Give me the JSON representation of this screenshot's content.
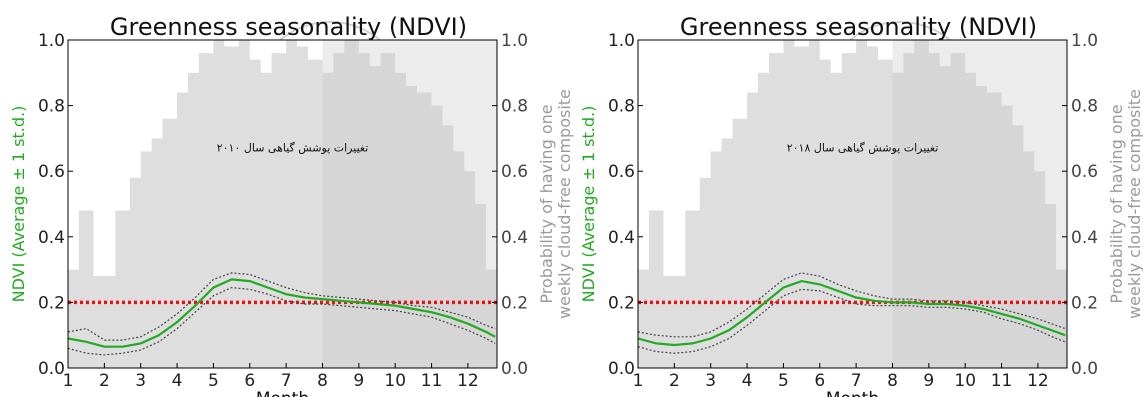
{
  "chart_data": [
    {
      "type": "line",
      "title": "Greenness seasonality (NDVI)",
      "xlabel": "Month",
      "ylabel": "NDVI (Average ± 1 st.d.)",
      "y2label": [
        "Probability of having one",
        "weekly cloud-free composite"
      ],
      "annotation": "تغییرات پوشش گیاهی سال ۲۰۱۰",
      "xlim": [
        1,
        12.8
      ],
      "ylim": [
        0,
        1.0
      ],
      "y2lim": [
        0,
        1.0
      ],
      "x_ticks": [
        "1",
        "2",
        "3",
        "4",
        "5",
        "6",
        "7",
        "8",
        "9",
        "10",
        "11",
        "12"
      ],
      "y_ticks": [
        "0.0",
        "0.2",
        "0.4",
        "0.6",
        "0.8",
        "1.0"
      ],
      "y2_ticks": [
        "0.0",
        "0.2",
        "0.4",
        "0.6",
        "0.8",
        "1.0"
      ],
      "threshold": 0.2,
      "colors": {
        "mean": "#22aa22",
        "band": "#444444",
        "threshold": "#ee1111",
        "bars": "#dcdcdc",
        "shade": "#c9c9c9"
      },
      "x": [
        1,
        1.5,
        2,
        2.5,
        3,
        3.5,
        4,
        4.5,
        5,
        5.5,
        6,
        6.5,
        7,
        7.5,
        8,
        8.5,
        9,
        9.5,
        10,
        10.5,
        11,
        11.5,
        12,
        12.5,
        12.75
      ],
      "series": [
        {
          "name": "",
          "role": "mean",
          "values": [
            0.09,
            0.08,
            0.065,
            0.065,
            0.075,
            0.1,
            0.14,
            0.19,
            0.245,
            0.27,
            0.265,
            0.245,
            0.225,
            0.215,
            0.21,
            0.205,
            0.2,
            0.195,
            0.19,
            0.18,
            0.17,
            0.155,
            0.135,
            0.11,
            0.095
          ]
        },
        {
          "name": "",
          "role": "upper",
          "values": [
            0.11,
            0.12,
            0.085,
            0.085,
            0.095,
            0.125,
            0.165,
            0.215,
            0.27,
            0.29,
            0.285,
            0.265,
            0.245,
            0.23,
            0.22,
            0.215,
            0.21,
            0.205,
            0.2,
            0.19,
            0.185,
            0.17,
            0.155,
            0.13,
            0.12
          ]
        },
        {
          "name": "",
          "role": "lower",
          "values": [
            0.06,
            0.045,
            0.04,
            0.045,
            0.055,
            0.08,
            0.12,
            0.17,
            0.22,
            0.245,
            0.24,
            0.225,
            0.205,
            0.195,
            0.195,
            0.19,
            0.185,
            0.18,
            0.175,
            0.165,
            0.155,
            0.135,
            0.115,
            0.09,
            0.075
          ]
        }
      ],
      "cloud_free_probability": {
        "x": [
          1,
          1.3,
          1.7,
          2.3,
          2.7,
          3.0,
          3.3,
          3.6,
          4.0,
          4.3,
          4.6,
          5.0,
          5.3,
          5.7,
          6.0,
          6.3,
          6.6,
          7.0,
          7.3,
          7.6,
          8.0,
          8.3,
          8.6,
          9.0,
          9.3,
          9.6,
          10.0,
          10.3,
          10.6,
          11.0,
          11.3,
          11.6,
          11.9,
          12.2,
          12.5
        ],
        "values": [
          0.3,
          0.48,
          0.28,
          0.48,
          0.58,
          0.66,
          0.7,
          0.76,
          0.84,
          0.9,
          0.96,
          1.0,
          0.98,
          1.0,
          0.94,
          0.9,
          0.96,
          1.0,
          0.98,
          0.94,
          0.9,
          0.96,
          1.0,
          0.96,
          0.92,
          0.96,
          0.9,
          0.86,
          0.84,
          0.8,
          0.74,
          0.66,
          0.6,
          0.5,
          0.3
        ]
      },
      "shade_from": 8
    },
    {
      "type": "line",
      "title": "Greenness seasonality (NDVI)",
      "xlabel": "Month",
      "ylabel": "NDVI (Average ± 1 st.d.)",
      "y2label": [
        "Probability of having one",
        "weekly cloud-free composite"
      ],
      "annotation": "تغییرات پوشش گیاهی سال ۲۰۱۸",
      "xlim": [
        1,
        12.8
      ],
      "ylim": [
        0,
        1.0
      ],
      "y2lim": [
        0,
        1.0
      ],
      "x_ticks": [
        "1",
        "2",
        "3",
        "4",
        "5",
        "6",
        "7",
        "8",
        "9",
        "10",
        "11",
        "12"
      ],
      "y_ticks": [
        "0.0",
        "0.2",
        "0.4",
        "0.6",
        "0.8",
        "1.0"
      ],
      "y2_ticks": [
        "0.0",
        "0.2",
        "0.4",
        "0.6",
        "0.8",
        "1.0"
      ],
      "threshold": 0.2,
      "colors": {
        "mean": "#22aa22",
        "band": "#444444",
        "threshold": "#ee1111",
        "bars": "#dcdcdc",
        "shade": "#c9c9c9"
      },
      "x": [
        1,
        1.5,
        2,
        2.5,
        3,
        3.5,
        4,
        4.5,
        5,
        5.5,
        6,
        6.5,
        7,
        7.5,
        8,
        8.5,
        9,
        9.5,
        10,
        10.5,
        11,
        11.5,
        12,
        12.5,
        12.75
      ],
      "series": [
        {
          "name": "",
          "role": "mean",
          "values": [
            0.09,
            0.075,
            0.07,
            0.075,
            0.09,
            0.115,
            0.155,
            0.2,
            0.245,
            0.265,
            0.255,
            0.235,
            0.215,
            0.205,
            0.2,
            0.2,
            0.195,
            0.195,
            0.19,
            0.18,
            0.165,
            0.15,
            0.13,
            0.11,
            0.1
          ]
        },
        {
          "name": "",
          "role": "upper",
          "values": [
            0.11,
            0.1,
            0.095,
            0.095,
            0.11,
            0.14,
            0.18,
            0.225,
            0.27,
            0.29,
            0.28,
            0.255,
            0.235,
            0.22,
            0.21,
            0.21,
            0.205,
            0.205,
            0.2,
            0.19,
            0.18,
            0.165,
            0.15,
            0.13,
            0.12
          ]
        },
        {
          "name": "",
          "role": "lower",
          "values": [
            0.065,
            0.05,
            0.045,
            0.05,
            0.065,
            0.09,
            0.13,
            0.175,
            0.22,
            0.24,
            0.235,
            0.215,
            0.195,
            0.19,
            0.19,
            0.19,
            0.185,
            0.185,
            0.18,
            0.17,
            0.15,
            0.135,
            0.115,
            0.09,
            0.08
          ]
        }
      ],
      "cloud_free_probability": {
        "x": [
          1,
          1.3,
          1.7,
          2.3,
          2.7,
          3.0,
          3.3,
          3.6,
          4.0,
          4.3,
          4.6,
          5.0,
          5.3,
          5.7,
          6.0,
          6.3,
          6.6,
          7.0,
          7.3,
          7.6,
          8.0,
          8.3,
          8.6,
          9.0,
          9.3,
          9.6,
          10.0,
          10.3,
          10.6,
          11.0,
          11.3,
          11.6,
          11.9,
          12.2,
          12.5
        ],
        "values": [
          0.3,
          0.48,
          0.28,
          0.48,
          0.58,
          0.66,
          0.7,
          0.76,
          0.84,
          0.9,
          0.96,
          1.0,
          0.98,
          1.0,
          0.94,
          0.9,
          0.96,
          1.0,
          0.98,
          0.94,
          0.9,
          0.96,
          1.0,
          0.96,
          0.92,
          0.96,
          0.9,
          0.86,
          0.84,
          0.8,
          0.74,
          0.66,
          0.6,
          0.5,
          0.3
        ]
      },
      "shade_from": 8
    }
  ]
}
